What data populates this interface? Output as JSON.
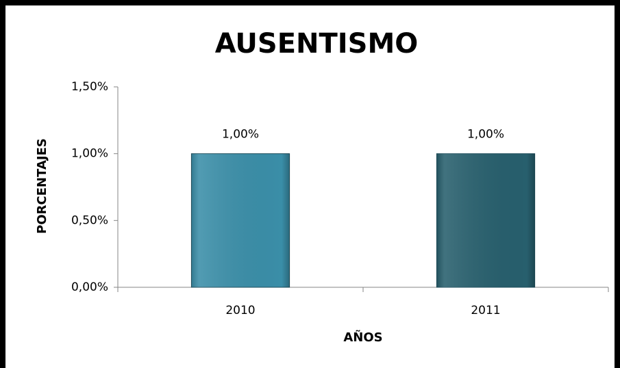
{
  "chart_data": {
    "type": "bar",
    "title": "AUSENTISMO",
    "x_label": "AÑOS",
    "y_label": "PORCENTAJES",
    "categories": [
      "2010",
      "2011"
    ],
    "values": [
      1.0,
      1.0
    ],
    "value_labels": [
      "1,00%",
      "1,00%"
    ],
    "colors": [
      "#3a8ea8",
      "#275f6d"
    ],
    "ylim": [
      0,
      1.5
    ],
    "yticks": [
      {
        "value": 0,
        "label": "0,00%"
      },
      {
        "value": 0.5,
        "label": "0,50%"
      },
      {
        "value": 1.0,
        "label": "1,00%"
      },
      {
        "value": 1.5,
        "label": "1,50%"
      }
    ],
    "grid": false
  }
}
